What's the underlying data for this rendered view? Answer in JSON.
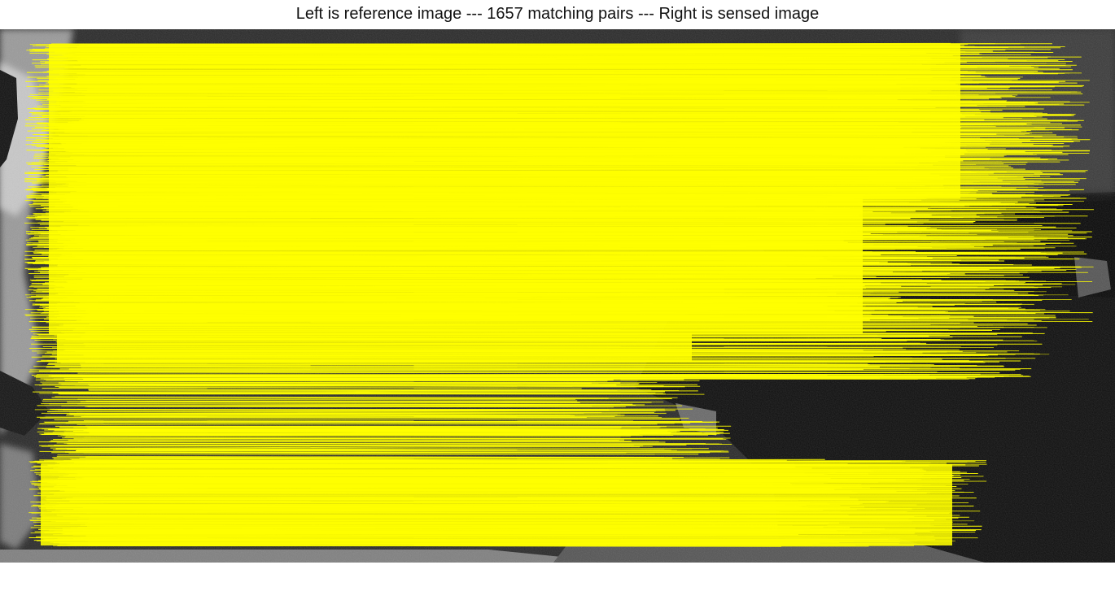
{
  "title": "Left is reference image --- 1657 matching pairs --- Right is sensed image",
  "figure": {
    "panels": [
      "reference image",
      "sensed image"
    ],
    "match_line_color": "#ffff00",
    "match_count": 1657
  }
}
